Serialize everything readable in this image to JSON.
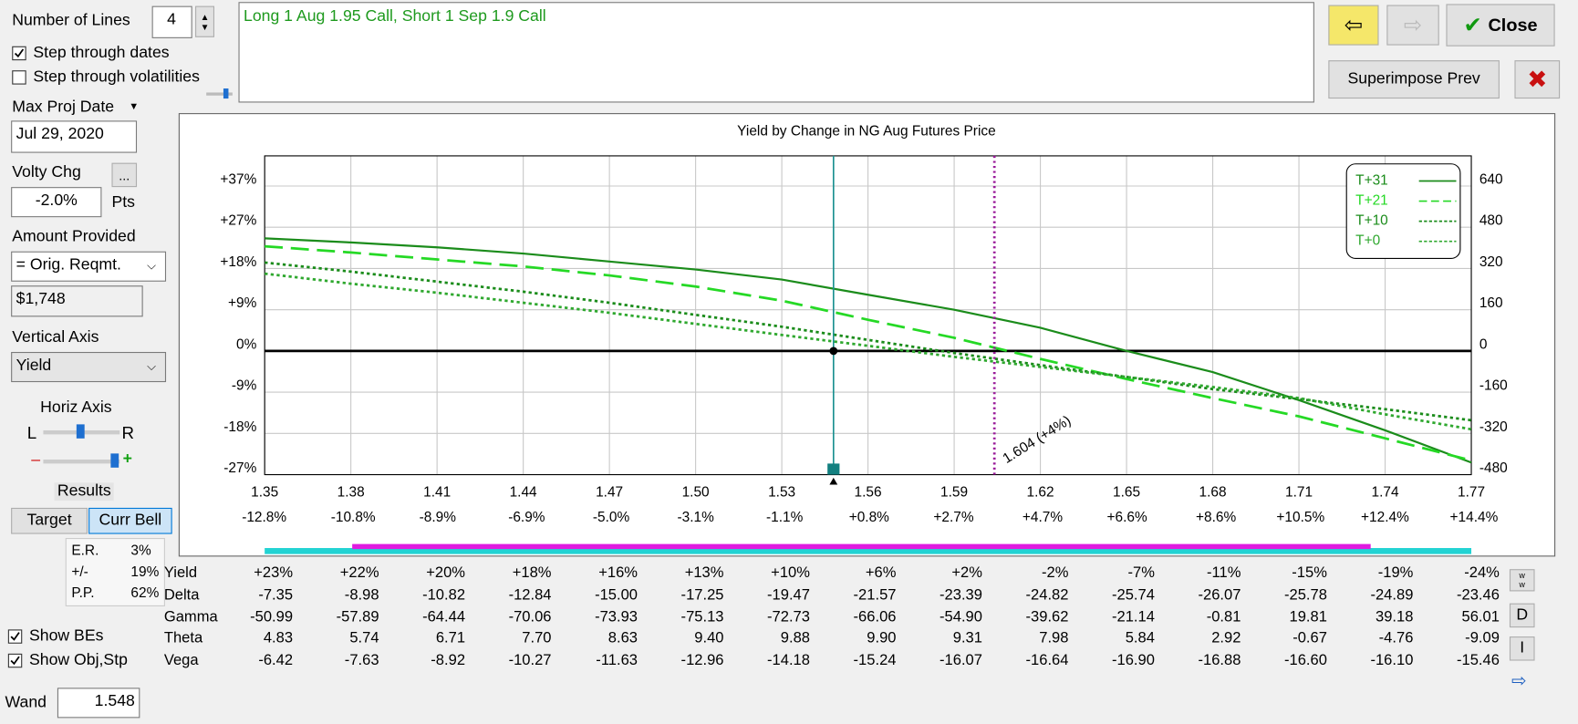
{
  "controls": {
    "number_of_lines_label": "Number of Lines",
    "number_of_lines": "4",
    "step_dates": "Step through dates",
    "step_vols": "Step through volatilities",
    "max_proj_date_label": "Max Proj Date",
    "max_proj_date": "Jul 29, 2020",
    "volty_chg_label": "Volty Chg",
    "volty_chg_button": "...",
    "volty_chg": "-2.0%",
    "volty_chg_unit": "Pts",
    "amount_provided_label": "Amount Provided",
    "amount_provided_mode": "= Orig. Reqmt.",
    "amount_provided": "$1,748",
    "vertical_axis_label": "Vertical Axis",
    "vertical_axis": "Yield",
    "horiz_axis_label": "Horiz Axis",
    "slider_left": "L",
    "slider_right": "R",
    "slider_minus": "–",
    "slider_plus": "+",
    "results_label": "Results",
    "target_button": "Target",
    "curr_bell_button": "Curr Bell",
    "show_bes": "Show BEs",
    "show_obj": "Show Obj,Stp",
    "wand_label": "Wand",
    "wand": "1.548",
    "superimpose": "Superimpose Prev",
    "close": "Close",
    "d_button": "D",
    "i_button": "I"
  },
  "strategy_text": "Long 1 Aug 1.95 Call, Short 1 Sep 1.9 Call",
  "stats": {
    "rows": [
      [
        "E.R.",
        "3%"
      ],
      [
        "+/-",
        "19%"
      ],
      [
        "P.P.",
        "62%"
      ]
    ]
  },
  "chart_data": {
    "type": "line",
    "title": "Yield by Change in NG Aug Futures Price",
    "x": [
      1.35,
      1.38,
      1.41,
      1.44,
      1.47,
      1.5,
      1.53,
      1.56,
      1.59,
      1.62,
      1.65,
      1.68,
      1.71,
      1.74,
      1.77
    ],
    "xlim": [
      1.35,
      1.77
    ],
    "xticks": [
      {
        "value": 1.35,
        "label": "1.35"
      },
      {
        "value": 1.38,
        "label": "1.38"
      },
      {
        "value": 1.41,
        "label": "1.41"
      },
      {
        "value": 1.44,
        "label": "1.44"
      },
      {
        "value": 1.47,
        "label": "1.47"
      },
      {
        "value": 1.5,
        "label": "1.50"
      },
      {
        "value": 1.53,
        "label": "1.53"
      },
      {
        "value": 1.56,
        "label": "1.56"
      },
      {
        "value": 1.59,
        "label": "1.59"
      },
      {
        "value": 1.62,
        "label": "1.62"
      },
      {
        "value": 1.65,
        "label": "1.65"
      },
      {
        "value": 1.68,
        "label": "1.68"
      },
      {
        "value": 1.71,
        "label": "1.71"
      },
      {
        "value": 1.74,
        "label": "1.74"
      },
      {
        "value": 1.77,
        "label": "1.77"
      }
    ],
    "x2lim": [
      -12.79,
      14.34
    ],
    "x2ticks": [
      {
        "value": -12.8,
        "label": "-12.8%"
      },
      {
        "value": -10.8,
        "label": "-10.8%"
      },
      {
        "value": -8.9,
        "label": "-8.9%"
      },
      {
        "value": -6.9,
        "label": "-6.9%"
      },
      {
        "value": -5.0,
        "label": "-5.0%"
      },
      {
        "value": -3.1,
        "label": "-3.1%"
      },
      {
        "value": -1.1,
        "label": "-1.1%"
      },
      {
        "value": 0.8,
        "label": "+0.8%"
      },
      {
        "value": 2.7,
        "label": "+2.7%"
      },
      {
        "value": 4.7,
        "label": "+4.7%"
      },
      {
        "value": 6.6,
        "label": "+6.6%"
      },
      {
        "value": 8.6,
        "label": "+8.6%"
      },
      {
        "value": 10.5,
        "label": "+10.5%"
      },
      {
        "value": 12.4,
        "label": "+12.4%"
      },
      {
        "value": 14.4,
        "label": "+14.4%"
      }
    ],
    "ylim": [
      -480,
      757
    ],
    "yticks": [
      640,
      480,
      320,
      160,
      0,
      -160,
      -320,
      -480
    ],
    "y2lim": [
      -27.46,
      43.31
    ],
    "y2ticks": [
      {
        "value": 36.61,
        "label": "+37%"
      },
      {
        "value": 27.46,
        "label": "+27%"
      },
      {
        "value": 18.31,
        "label": "+18%"
      },
      {
        "value": 9.15,
        "label": "+9%"
      },
      {
        "value": 0,
        "label": "0%"
      },
      {
        "value": -9.15,
        "label": "-9%"
      },
      {
        "value": -18.31,
        "label": "-18%"
      },
      {
        "value": -27.46,
        "label": "-27%"
      }
    ],
    "grid": true,
    "legend": "upper right",
    "current_price": 1.548,
    "target_line": {
      "value": 1.604,
      "label": "1.604 (+4%)"
    },
    "series": [
      {
        "name": "T+31",
        "color": "#1b8c1b",
        "dash": "solid",
        "values": [
          437,
          421,
          402,
          378,
          347,
          316,
          277,
          218,
          160,
          90,
          0,
          -82,
          -191,
          -308,
          -433
        ]
      },
      {
        "name": "T+21",
        "color": "#25d925",
        "dash": "long-dash",
        "values": [
          406,
          382,
          355,
          328,
          293,
          250,
          195,
          121,
          51,
          -31,
          -109,
          -183,
          -254,
          -339,
          -425
        ]
      },
      {
        "name": "T+10",
        "color": "#1b8c1b",
        "dash": "dot",
        "values": [
          343,
          308,
          269,
          230,
          187,
          140,
          94,
          43,
          -8,
          -55,
          -101,
          -148,
          -187,
          -226,
          -269
        ]
      },
      {
        "name": "T+0",
        "color": "#2fa82f",
        "dash": "dot",
        "values": [
          300,
          261,
          226,
          187,
          148,
          105,
          62,
          20,
          -23,
          -62,
          -101,
          -140,
          -183,
          -246,
          -304
        ]
      }
    ]
  },
  "greeks_table": {
    "row_labels": [
      "Yield",
      "Delta",
      "Gamma",
      "Theta",
      "Vega"
    ],
    "rows": [
      [
        "+23%",
        "+22%",
        "+20%",
        "+18%",
        "+16%",
        "+13%",
        "+10%",
        "+6%",
        "+2%",
        "-2%",
        "-7%",
        "-11%",
        "-15%",
        "-19%",
        "-24%"
      ],
      [
        "-7.35",
        "-8.98",
        "-10.82",
        "-12.84",
        "-15.00",
        "-17.25",
        "-19.47",
        "-21.57",
        "-23.39",
        "-24.82",
        "-25.74",
        "-26.07",
        "-25.78",
        "-24.89",
        "-23.46"
      ],
      [
        "-50.99",
        "-57.89",
        "-64.44",
        "-70.06",
        "-73.93",
        "-75.13",
        "-72.73",
        "-66.06",
        "-54.90",
        "-39.62",
        "-21.14",
        "-0.81",
        "19.81",
        "39.18",
        "56.01"
      ],
      [
        "4.83",
        "5.74",
        "6.71",
        "7.70",
        "8.63",
        "9.40",
        "9.88",
        "9.90",
        "9.31",
        "7.98",
        "5.84",
        "2.92",
        "-0.67",
        "-4.76",
        "-9.09"
      ],
      [
        "-6.42",
        "-7.63",
        "-8.92",
        "-10.27",
        "-11.63",
        "-12.96",
        "-14.18",
        "-15.24",
        "-16.07",
        "-16.64",
        "-16.90",
        "-16.88",
        "-16.60",
        "-16.10",
        "-15.46"
      ]
    ]
  }
}
